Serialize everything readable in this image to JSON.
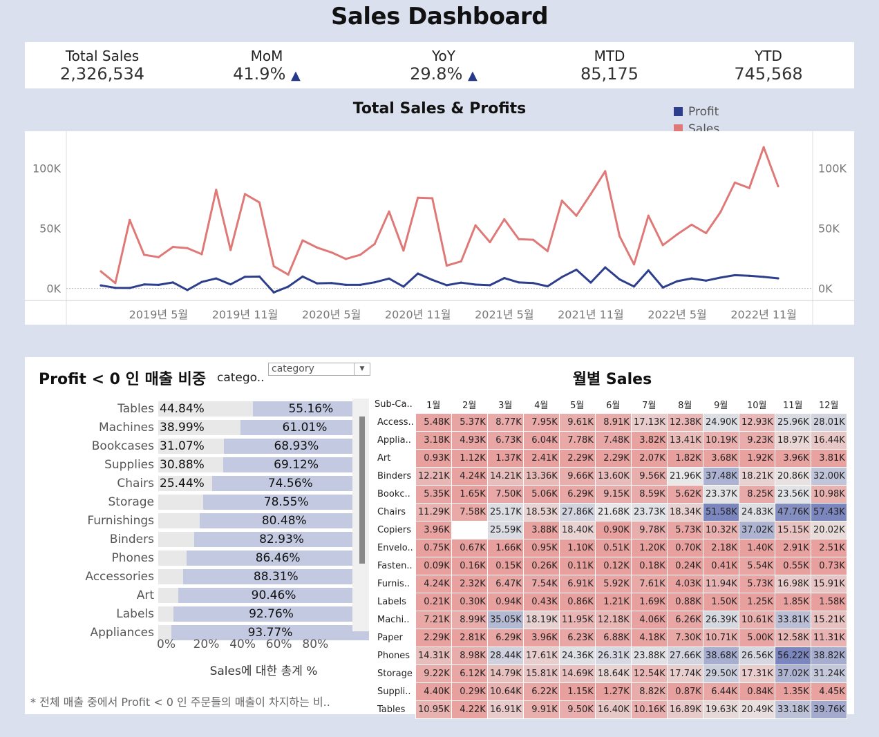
{
  "title": "Sales Dashboard",
  "kpis": [
    {
      "label": "Total Sales",
      "value": "2,326,534",
      "arrow": ""
    },
    {
      "label": "MoM",
      "value": "41.9%",
      "arrow": "▲"
    },
    {
      "label": "YoY",
      "value": "29.8%",
      "arrow": "▲"
    },
    {
      "label": "MTD",
      "value": "85,175",
      "arrow": ""
    },
    {
      "label": "YTD",
      "value": "745,568",
      "arrow": ""
    }
  ],
  "colors": {
    "profit": "#2c3e8c",
    "sales": "#df7977",
    "heat_low": "#e8a09e",
    "heat_mid": "#e8e8e8",
    "heat_high": "#7b86be"
  },
  "line_chart": {
    "title": "Total Sales & Profits",
    "legend": [
      "Profit",
      "Sales"
    ],
    "y_ticks": [
      "0K",
      "50K",
      "100K"
    ],
    "x_ticks": [
      "2019년 5월",
      "2019년 11월",
      "2020년 5월",
      "2020년 11월",
      "2021년 5월",
      "2021년 11월",
      "2022년 5월",
      "2022년 11월"
    ]
  },
  "profit_share": {
    "title": "Profit < 0 인 매출 비중",
    "filter_label": "catego..",
    "filter_value": "category",
    "x_axis_ticks": [
      "0%",
      "20%",
      "40%",
      "60%",
      "80%"
    ],
    "x_axis_title": "Sales에 대한 총계 %",
    "footnote": "* 전체 매출 중에서 Profit < 0 인 주문들의 매출이 차지하는 비.."
  },
  "heatmap": {
    "title": "월별 Sales",
    "corner": "Sub-Ca..",
    "months": [
      "1월",
      "2월",
      "3월",
      "4월",
      "5월",
      "6월",
      "7월",
      "8월",
      "9월",
      "10월",
      "11월",
      "12월"
    ]
  },
  "chart_data": [
    {
      "type": "line",
      "title": "Total Sales & Profits",
      "x": [
        "2019-01",
        "2019-02",
        "2019-03",
        "2019-04",
        "2019-05",
        "2019-06",
        "2019-07",
        "2019-08",
        "2019-09",
        "2019-10",
        "2019-11",
        "2019-12",
        "2020-01",
        "2020-02",
        "2020-03",
        "2020-04",
        "2020-05",
        "2020-06",
        "2020-07",
        "2020-08",
        "2020-09",
        "2020-10",
        "2020-11",
        "2020-12",
        "2021-01",
        "2021-02",
        "2021-03",
        "2021-04",
        "2021-05",
        "2021-06",
        "2021-07",
        "2021-08",
        "2021-09",
        "2021-10",
        "2021-11",
        "2021-12",
        "2022-01",
        "2022-02",
        "2022-03",
        "2022-04",
        "2022-05",
        "2022-06",
        "2022-07",
        "2022-08",
        "2022-09",
        "2022-10",
        "2022-11",
        "2022-12"
      ],
      "series": [
        {
          "name": "Sales",
          "values": [
            14200,
            4500,
            57000,
            28000,
            26000,
            34500,
            33500,
            28500,
            82000,
            32000,
            78500,
            71500,
            18500,
            11500,
            40000,
            34000,
            30000,
            24500,
            28000,
            37000,
            64000,
            31500,
            75500,
            75000,
            19000,
            22500,
            52500,
            38500,
            57500,
            41000,
            40500,
            31000,
            73000,
            60500,
            78500,
            97500,
            43500,
            20000,
            60500,
            36000,
            45000,
            53000,
            46000,
            63500,
            88000,
            83500,
            117500,
            85000
          ]
        },
        {
          "name": "Profit",
          "values": [
            2500,
            500,
            400,
            3300,
            3000,
            5000,
            -1300,
            5400,
            8300,
            3400,
            9700,
            9900,
            -3300,
            1500,
            9900,
            4200,
            4500,
            3000,
            3000,
            5100,
            8200,
            1500,
            12400,
            7100,
            2700,
            4800,
            3200,
            2700,
            8600,
            5000,
            4500,
            1800,
            9500,
            15600,
            4900,
            17500,
            7500,
            1600,
            15000,
            800,
            6000,
            8300,
            6500,
            9000,
            11000,
            10500,
            9600,
            8400
          ]
        }
      ],
      "ylim": [
        -10000,
        125000
      ],
      "y_ticks": [
        0,
        50000,
        100000
      ],
      "dual_axis": true
    },
    {
      "type": "bar",
      "title": "Profit < 0 인 매출 비중",
      "xlabel": "Sales에 대한 총계 %",
      "categories": [
        "Tables",
        "Machines",
        "Bookcases",
        "Supplies",
        "Chairs",
        "Storage",
        "Furnishings",
        "Binders",
        "Phones",
        "Accessories",
        "Art",
        "Labels",
        "Appliances"
      ],
      "series": [
        {
          "values": [
            44.84,
            38.99,
            31.07,
            30.88,
            25.44,
            21.45,
            19.52,
            17.07,
            13.54,
            11.69,
            9.54,
            7.24,
            6.23
          ]
        },
        {
          "values": [
            55.16,
            61.01,
            68.93,
            69.12,
            74.56,
            78.55,
            80.48,
            82.93,
            86.46,
            88.31,
            90.46,
            92.76,
            93.77
          ]
        }
      ],
      "labels": [
        [
          "44.84%",
          "55.16%"
        ],
        [
          "38.99%",
          "61.01%"
        ],
        [
          "31.07%",
          "68.93%"
        ],
        [
          "30.88%",
          "69.12%"
        ],
        [
          "25.44%",
          "74.56%"
        ],
        [
          "",
          "78.55%"
        ],
        [
          "",
          "80.48%"
        ],
        [
          "",
          "82.93%"
        ],
        [
          "",
          "86.46%"
        ],
        [
          "",
          "88.31%"
        ],
        [
          "",
          "90.46%"
        ],
        [
          "",
          "92.76%"
        ],
        [
          "",
          "93.77%"
        ]
      ],
      "stacked": true,
      "xlim": [
        0,
        100
      ]
    },
    {
      "type": "heatmap",
      "title": "월별 Sales",
      "columns": [
        "1월",
        "2월",
        "3월",
        "4월",
        "5월",
        "6월",
        "7월",
        "8월",
        "9월",
        "10월",
        "11월",
        "12월"
      ],
      "rows": [
        {
          "name": "Access..",
          "values": [
            "5.48K",
            "5.37K",
            "8.77K",
            "7.95K",
            "9.61K",
            "8.91K",
            "17.13K",
            "12.38K",
            "24.90K",
            "12.93K",
            "25.96K",
            "28.01K"
          ]
        },
        {
          "name": "Applia..",
          "values": [
            "3.18K",
            "4.93K",
            "6.73K",
            "6.04K",
            "7.78K",
            "7.48K",
            "3.82K",
            "13.41K",
            "10.19K",
            "9.23K",
            "18.97K",
            "16.44K"
          ]
        },
        {
          "name": "Art",
          "values": [
            "0.93K",
            "1.12K",
            "1.37K",
            "2.41K",
            "2.29K",
            "2.29K",
            "2.07K",
            "1.82K",
            "3.68K",
            "1.92K",
            "3.96K",
            "3.81K"
          ]
        },
        {
          "name": "Binders",
          "values": [
            "12.21K",
            "4.24K",
            "14.21K",
            "13.36K",
            "9.66K",
            "13.60K",
            "9.56K",
            "21.96K",
            "37.48K",
            "18.21K",
            "20.86K",
            "32.00K"
          ]
        },
        {
          "name": "Bookc..",
          "values": [
            "5.35K",
            "1.65K",
            "7.50K",
            "5.06K",
            "6.29K",
            "9.15K",
            "8.59K",
            "5.62K",
            "23.37K",
            "8.25K",
            "23.56K",
            "10.98K"
          ]
        },
        {
          "name": "Chairs",
          "values": [
            "11.29K",
            "7.58K",
            "25.17K",
            "18.53K",
            "27.86K",
            "21.68K",
            "23.73K",
            "18.34K",
            "51.58K",
            "24.83K",
            "47.76K",
            "57.43K"
          ]
        },
        {
          "name": "Copiers",
          "values": [
            "3.96K",
            "",
            "25.59K",
            "3.88K",
            "18.40K",
            "0.90K",
            "9.78K",
            "5.73K",
            "10.32K",
            "37.02K",
            "15.15K",
            "20.02K"
          ]
        },
        {
          "name": "Envelo..",
          "values": [
            "0.75K",
            "0.67K",
            "1.66K",
            "0.95K",
            "1.10K",
            "0.51K",
            "1.20K",
            "0.70K",
            "2.18K",
            "1.40K",
            "2.91K",
            "2.51K"
          ]
        },
        {
          "name": "Fasten..",
          "values": [
            "0.09K",
            "0.16K",
            "0.15K",
            "0.26K",
            "0.11K",
            "0.12K",
            "0.18K",
            "0.24K",
            "0.41K",
            "5.54K",
            "0.55K",
            "0.73K"
          ]
        },
        {
          "name": "Furnis..",
          "values": [
            "4.24K",
            "2.32K",
            "6.47K",
            "7.54K",
            "6.91K",
            "5.92K",
            "7.61K",
            "4.03K",
            "11.94K",
            "5.73K",
            "16.98K",
            "15.91K"
          ]
        },
        {
          "name": "Labels",
          "values": [
            "0.21K",
            "0.30K",
            "0.94K",
            "0.43K",
            "0.86K",
            "1.21K",
            "1.69K",
            "0.88K",
            "1.50K",
            "1.25K",
            "1.85K",
            "1.58K"
          ]
        },
        {
          "name": "Machi..",
          "values": [
            "7.21K",
            "8.99K",
            "35.05K",
            "18.19K",
            "11.95K",
            "12.18K",
            "4.06K",
            "6.26K",
            "26.39K",
            "10.61K",
            "33.81K",
            "15.21K"
          ]
        },
        {
          "name": "Paper",
          "values": [
            "2.29K",
            "2.81K",
            "6.29K",
            "3.96K",
            "6.23K",
            "6.88K",
            "4.18K",
            "7.30K",
            "10.71K",
            "5.00K",
            "12.58K",
            "11.31K"
          ]
        },
        {
          "name": "Phones",
          "values": [
            "14.31K",
            "8.98K",
            "28.44K",
            "17.61K",
            "24.36K",
            "26.31K",
            "23.88K",
            "27.66K",
            "38.68K",
            "26.56K",
            "56.22K",
            "38.82K"
          ]
        },
        {
          "name": "Storage",
          "values": [
            "9.22K",
            "6.12K",
            "14.79K",
            "15.81K",
            "14.69K",
            "18.64K",
            "12.54K",
            "17.74K",
            "29.50K",
            "17.31K",
            "37.02K",
            "31.24K"
          ]
        },
        {
          "name": "Suppli..",
          "values": [
            "4.40K",
            "0.29K",
            "10.64K",
            "6.22K",
            "1.15K",
            "1.27K",
            "8.82K",
            "0.87K",
            "6.44K",
            "0.84K",
            "1.35K",
            "4.45K"
          ]
        },
        {
          "name": "Tables",
          "values": [
            "10.95K",
            "4.22K",
            "16.91K",
            "9.91K",
            "9.50K",
            "16.40K",
            "10.16K",
            "16.89K",
            "19.63K",
            "20.49K",
            "33.18K",
            "39.76K"
          ]
        }
      ]
    }
  ]
}
